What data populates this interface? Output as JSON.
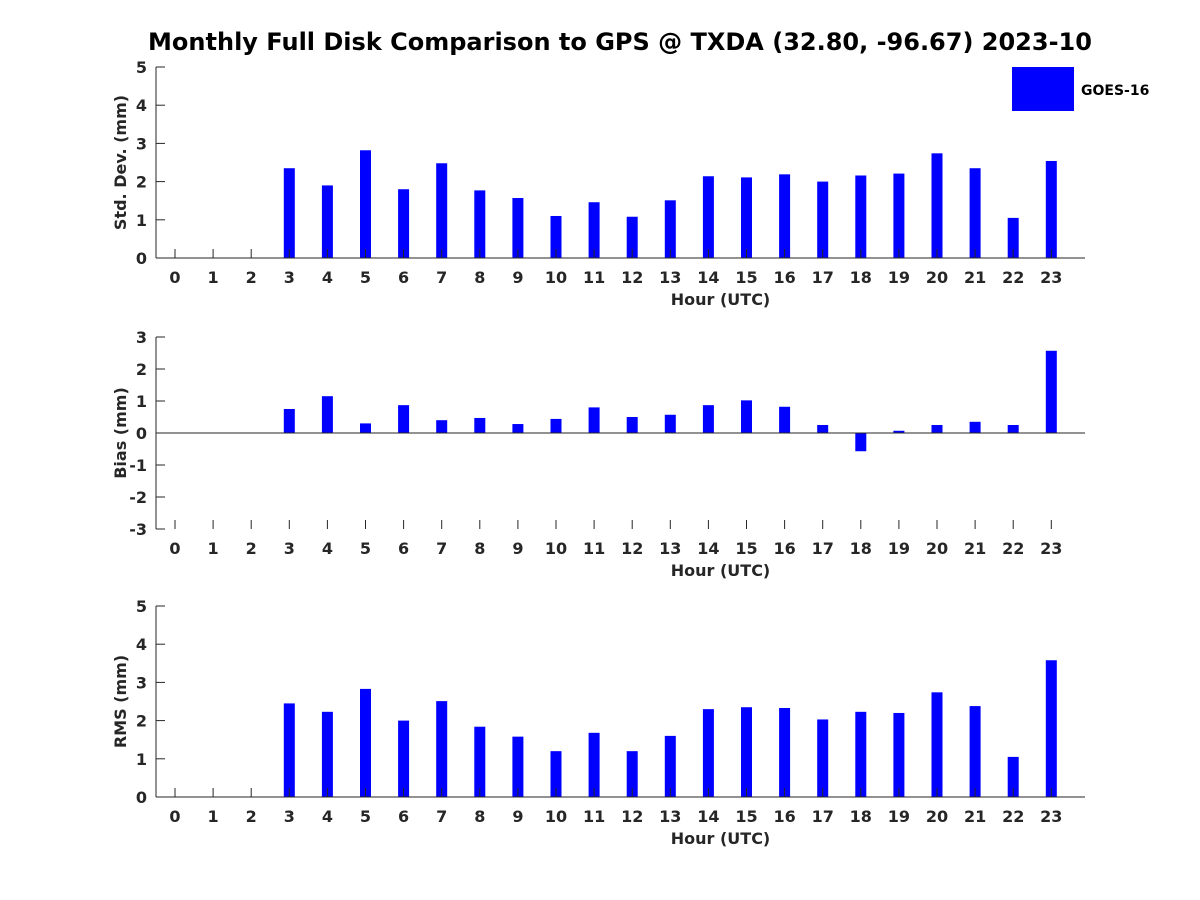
{
  "title": "Monthly Full Disk Comparison to GPS @ TXDA (32.80, -96.67) 2023-10",
  "colors": {
    "bar": "#0000ff",
    "axis": "#262626"
  },
  "legend": {
    "label": "GOES-16",
    "placement": "top-right"
  },
  "chart_data": [
    {
      "type": "bar",
      "series": [
        {
          "name": "GOES-16",
          "values": [
            null,
            null,
            null,
            2.35,
            1.9,
            2.82,
            1.8,
            2.48,
            1.77,
            1.57,
            1.1,
            1.46,
            1.08,
            1.51,
            2.14,
            2.11,
            2.19,
            2.0,
            2.16,
            2.21,
            2.74,
            2.35,
            1.05,
            2.54
          ]
        }
      ],
      "categories": [
        "0",
        "1",
        "2",
        "3",
        "4",
        "5",
        "6",
        "7",
        "8",
        "9",
        "10",
        "11",
        "12",
        "13",
        "14",
        "15",
        "16",
        "17",
        "18",
        "19",
        "20",
        "21",
        "22",
        "23"
      ],
      "xlabel": "Hour (UTC)",
      "ylabel": "Std. Dev. (mm)",
      "ylim": [
        0,
        5
      ],
      "yticks": [
        0,
        1,
        2,
        3,
        4,
        5
      ],
      "grid": false
    },
    {
      "type": "bar",
      "series": [
        {
          "name": "GOES-16",
          "values": [
            null,
            null,
            null,
            0.75,
            1.15,
            0.3,
            0.87,
            0.4,
            0.47,
            0.28,
            0.44,
            0.8,
            0.5,
            0.57,
            0.87,
            1.02,
            0.82,
            0.25,
            -0.57,
            0.07,
            0.25,
            0.35,
            0.25,
            2.57
          ]
        }
      ],
      "categories": [
        "0",
        "1",
        "2",
        "3",
        "4",
        "5",
        "6",
        "7",
        "8",
        "9",
        "10",
        "11",
        "12",
        "13",
        "14",
        "15",
        "16",
        "17",
        "18",
        "19",
        "20",
        "21",
        "22",
        "23"
      ],
      "xlabel": "Hour (UTC)",
      "ylabel": "Bias (mm)",
      "ylim": [
        -3,
        3
      ],
      "yticks": [
        -3,
        -2,
        -1,
        0,
        1,
        2,
        3
      ],
      "grid": false
    },
    {
      "type": "bar",
      "series": [
        {
          "name": "GOES-16",
          "values": [
            null,
            null,
            null,
            2.45,
            2.23,
            2.83,
            2.0,
            2.51,
            1.84,
            1.58,
            1.2,
            1.68,
            1.2,
            1.6,
            2.3,
            2.35,
            2.33,
            2.03,
            2.23,
            2.2,
            2.74,
            2.38,
            1.05,
            3.58
          ]
        }
      ],
      "categories": [
        "0",
        "1",
        "2",
        "3",
        "4",
        "5",
        "6",
        "7",
        "8",
        "9",
        "10",
        "11",
        "12",
        "13",
        "14",
        "15",
        "16",
        "17",
        "18",
        "19",
        "20",
        "21",
        "22",
        "23"
      ],
      "xlabel": "Hour (UTC)",
      "ylabel": "RMS (mm)",
      "ylim": [
        0,
        5
      ],
      "yticks": [
        0,
        1,
        2,
        3,
        4,
        5
      ],
      "grid": false
    }
  ]
}
